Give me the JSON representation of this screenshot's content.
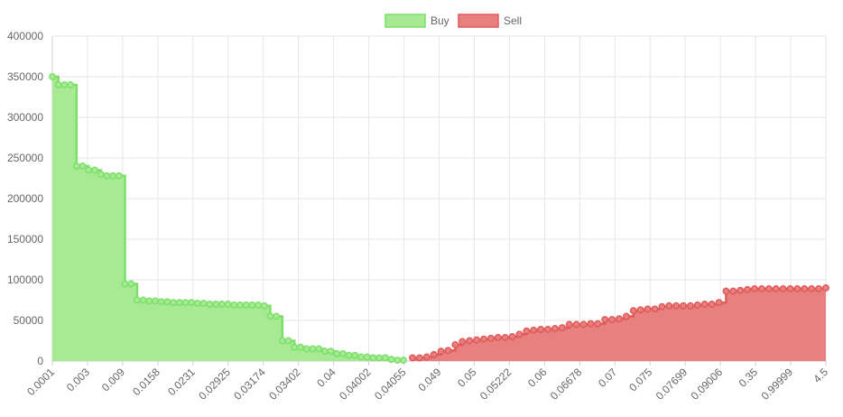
{
  "chart_data": {
    "type": "area",
    "title": "",
    "xlabel": "",
    "ylabel": "",
    "ylim": [
      0,
      400000
    ],
    "y_ticks": [
      "0",
      "50000",
      "100000",
      "150000",
      "200000",
      "250000",
      "300000",
      "350000",
      "400000"
    ],
    "x_tick_labels": [
      "0.0001",
      "0.003",
      "0.009",
      "0.0158",
      "0.0231",
      "0.02925",
      "0.03174",
      "0.03402",
      "0.04",
      "0.04002",
      "0.04055",
      "0.049",
      "0.05",
      "0.05222",
      "0.06",
      "0.06678",
      "0.07",
      "0.075",
      "0.07699",
      "0.09006",
      "0.35",
      "0.99999",
      "4.5"
    ],
    "grid": true,
    "legend_position": "top-center",
    "series": [
      {
        "name": "Buy",
        "color": "#7be06a",
        "fill": "#a8ea94",
        "values": [
          350000,
          340000,
          340000,
          340000,
          240000,
          240000,
          235000,
          235000,
          230000,
          228000,
          228000,
          228000,
          95000,
          95000,
          75000,
          75000,
          74000,
          74000,
          73000,
          73000,
          72000,
          72000,
          72000,
          72000,
          71000,
          71000,
          70000,
          70000,
          70000,
          70000,
          69000,
          69000,
          69000,
          69000,
          69000,
          68000,
          55000,
          55000,
          25000,
          25000,
          17000,
          17000,
          15000,
          15000,
          15000,
          12000,
          12000,
          9000,
          9000,
          7000,
          7000,
          5000,
          5000,
          4000,
          4000,
          4000,
          2000,
          1000,
          1000
        ]
      },
      {
        "name": "Sell",
        "color": "#e05a5a",
        "fill": "#e88080",
        "values": [
          4000,
          4000,
          5000,
          8000,
          12000,
          13000,
          20000,
          24000,
          25000,
          26000,
          27000,
          28000,
          29000,
          29000,
          30000,
          33000,
          37000,
          38000,
          39000,
          39000,
          40000,
          41000,
          45000,
          45000,
          45000,
          46000,
          46000,
          51000,
          51000,
          52000,
          55000,
          62000,
          63000,
          64000,
          64000,
          67000,
          68000,
          68000,
          68000,
          68000,
          69000,
          70000,
          70000,
          72000,
          86000,
          86000,
          87000,
          88000,
          89000,
          89000,
          89000,
          89000,
          89000,
          89000,
          89000,
          89000,
          89000,
          89000,
          90000
        ]
      }
    ]
  }
}
